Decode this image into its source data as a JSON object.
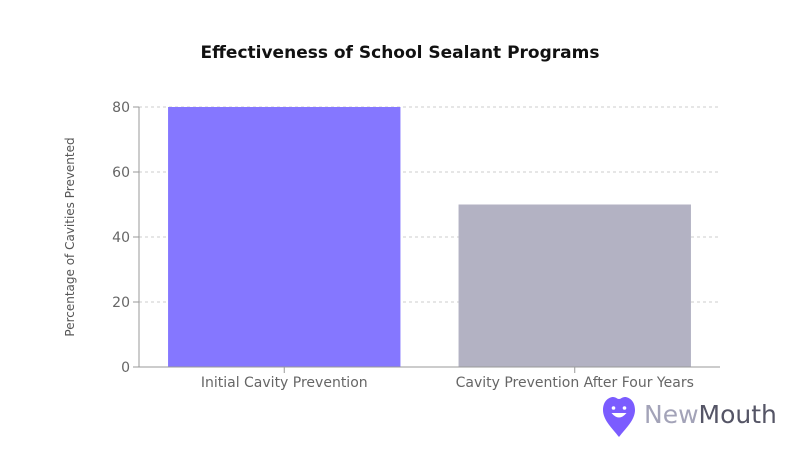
{
  "chart_data": {
    "type": "bar",
    "title": "Effectiveness of School Sealant Programs",
    "xlabel": "",
    "ylabel": "Percentage of Cavities Prevented",
    "categories": [
      "Initial Cavity Prevention",
      "Cavity Prevention After Four Years"
    ],
    "values": [
      80,
      50
    ],
    "colors": [
      "#8577ff",
      "#b3b2c3"
    ],
    "ylim": [
      0,
      80
    ],
    "yticks": [
      0,
      20,
      40,
      60,
      80
    ],
    "grid": true
  },
  "brand": {
    "name_part1": "New",
    "name_part2": "Mouth",
    "logo_icon": "smiling-tooth-pin-icon",
    "color": "#7b5cff"
  }
}
